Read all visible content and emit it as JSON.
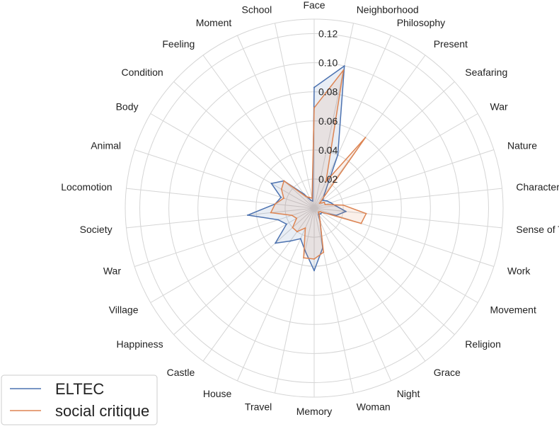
{
  "chart_data": {
    "type": "radar",
    "categories": [
      "Face",
      "Neighborhood",
      "Philosophy",
      "Present",
      "Seafaring",
      "War",
      "Nature",
      "Character",
      "Sense of Time",
      "Work",
      "Movement",
      "Religion",
      "Grace",
      "Night",
      "Woman",
      "Memory",
      "Travel",
      "House",
      "Castle",
      "Happiness",
      "Village",
      "War",
      "Society",
      "Locomotion",
      "Animal",
      "Body",
      "Condition",
      "Feeling",
      "Moment",
      "School"
    ],
    "series": [
      {
        "name": "ELTEC",
        "color": "#4c72b0",
        "values": [
          0.083,
          0.1,
          0.04,
          0.012,
          0.008,
          0.01,
          0.012,
          0.015,
          0.022,
          0.016,
          0.006,
          0.006,
          0.005,
          0.01,
          0.028,
          0.043,
          0.03,
          0.023,
          0.028,
          0.036,
          0.022,
          0.026,
          0.046,
          0.027,
          0.024,
          0.034,
          0.028,
          0.012,
          0.006,
          0.005
        ]
      },
      {
        "name": "social critique",
        "color": "#dd8452",
        "values": [
          0.069,
          0.097,
          0.02,
          0.06,
          0.005,
          0.008,
          0.008,
          0.02,
          0.036,
          0.034,
          0.005,
          0.004,
          0.006,
          0.01,
          0.031,
          0.035,
          0.035,
          0.015,
          0.02,
          0.02,
          0.014,
          0.016,
          0.03,
          0.027,
          0.022,
          0.026,
          0.028,
          0.01,
          0.008,
          0.007
        ]
      }
    ],
    "rlim": [
      0,
      0.13
    ],
    "r_ticks": [
      0.02,
      0.04,
      0.06,
      0.08,
      0.1,
      0.12
    ],
    "r_tick_labels": [
      "0.02",
      "0.04",
      "0.06",
      "0.08",
      "0.10",
      "0.12"
    ],
    "grid": true,
    "legend_position": "bottom-left"
  }
}
